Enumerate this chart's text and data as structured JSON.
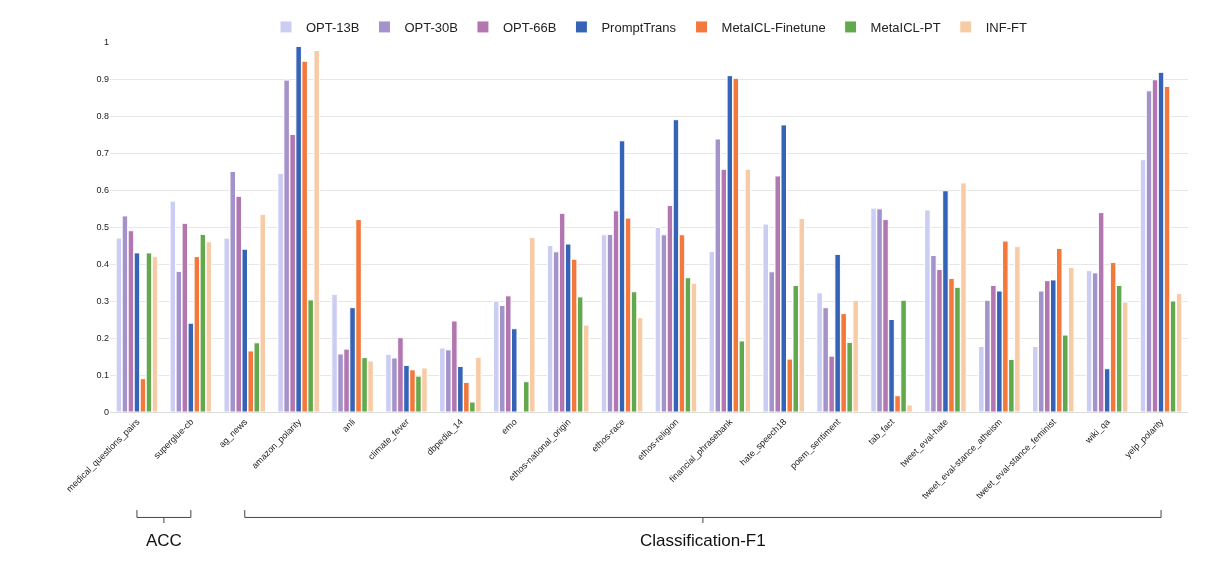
{
  "chart_data": {
    "type": "bar",
    "categories": [
      "medical_questions_pairs",
      "superglue-cb",
      "ag_news",
      "amazon_polarity",
      "anli",
      "climate_fever",
      "dbpedia_14",
      "emo",
      "ethos-national_origin",
      "ethos-race",
      "ethos-religion",
      "financial_phrasebank",
      "hate_speech18",
      "poem_sentiment",
      "tab_fact",
      "tweet_eval-hate",
      "tweet_eval-stance_atheism",
      "tweet_eval-stance_feminist",
      "wiki_qa",
      "yelp_polarity"
    ],
    "series": [
      {
        "name": "OPT-13B",
        "color": "#cccdf3",
        "values": [
          0.47,
          0.57,
          0.47,
          0.645,
          0.318,
          0.156,
          0.173,
          0.3,
          0.45,
          0.479,
          0.499,
          0.434,
          0.508,
          0.322,
          0.551,
          0.546,
          0.177,
          0.177,
          0.382,
          0.682
        ]
      },
      {
        "name": "OPT-30B",
        "color": "#a493cb",
        "values": [
          0.53,
          0.38,
          0.65,
          0.897,
          0.157,
          0.146,
          0.168,
          0.288,
          0.433,
          0.48,
          0.479,
          0.738,
          0.379,
          0.282,
          0.549,
          0.423,
          0.302,
          0.327,
          0.376,
          0.868
        ]
      },
      {
        "name": "OPT-66B",
        "color": "#b277b0",
        "values": [
          0.49,
          0.51,
          0.583,
          0.75,
          0.17,
          0.201,
          0.246,
          0.314,
          0.537,
          0.544,
          0.558,
          0.656,
          0.638,
          0.151,
          0.52,
          0.385,
          0.342,
          0.355,
          0.539,
          0.898
        ]
      },
      {
        "name": "PromptTrans",
        "color": "#3563b5",
        "values": [
          0.43,
          0.24,
          0.44,
          0.988,
          0.282,
          0.126,
          0.123,
          0.225,
          0.454,
          0.733,
          0.79,
          0.909,
          0.776,
          0.426,
          0.25,
          0.598,
          0.327,
          0.357,
          0.117,
          0.918
        ]
      },
      {
        "name": "MetaICL-Finetune",
        "color": "#f2783b",
        "values": [
          0.09,
          0.42,
          0.165,
          0.948,
          0.52,
          0.114,
          0.08,
          null,
          0.413,
          0.524,
          0.479,
          0.902,
          0.143,
          0.266,
          0.044,
          0.361,
          0.462,
          0.442,
          0.404,
          0.88
        ]
      },
      {
        "name": "MetaICL-PT",
        "color": "#62a84c",
        "values": [
          0.43,
          0.48,
          0.187,
          0.303,
          0.147,
          0.097,
          0.027,
          0.082,
          0.311,
          0.325,
          0.363,
          0.192,
          0.342,
          0.188,
          0.302,
          0.337,
          0.142,
          0.208,
          0.342,
          0.3
        ]
      },
      {
        "name": "INF-FT",
        "color": "#f8cba7",
        "values": [
          0.42,
          0.46,
          0.534,
          0.977,
          0.138,
          0.119,
          0.148,
          0.472,
          0.235,
          0.255,
          0.348,
          0.656,
          0.523,
          0.302,
          0.019,
          0.619,
          0.447,
          0.391,
          0.297,
          0.32
        ]
      }
    ],
    "ylim": [
      0,
      1
    ],
    "yticks": [
      0,
      0.1,
      0.2,
      0.3,
      0.4,
      0.5,
      0.6,
      0.7,
      0.8,
      0.9,
      1
    ],
    "grid": "y",
    "legend": "top",
    "annotations": [
      "ACC",
      "Classification-F1"
    ]
  }
}
